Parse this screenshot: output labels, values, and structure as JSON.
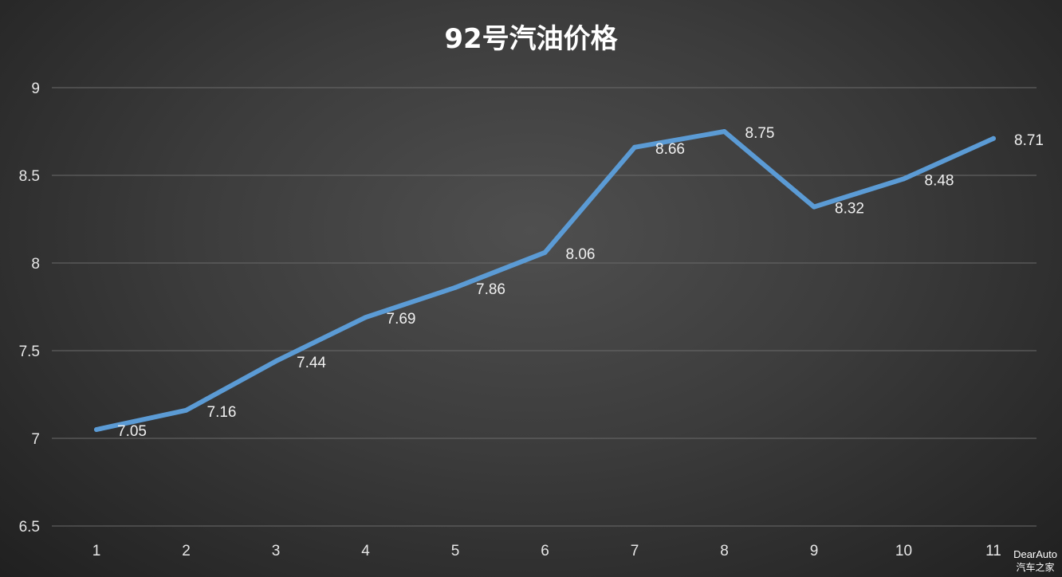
{
  "chart_data": {
    "type": "line",
    "title": "92号汽油价格",
    "xlabel": "",
    "ylabel": "",
    "categories": [
      "1",
      "2",
      "3",
      "4",
      "5",
      "6",
      "7",
      "8",
      "9",
      "10",
      "11"
    ],
    "values": [
      7.05,
      7.16,
      7.44,
      7.69,
      7.86,
      8.06,
      8.66,
      8.75,
      8.32,
      8.48,
      8.71
    ],
    "data_labels": [
      "7.05",
      "7.16",
      "7.44",
      "7.69",
      "7.86",
      "8.06",
      "8.66",
      "8.75",
      "8.32",
      "8.48",
      "8.71"
    ],
    "ylim": [
      6.5,
      9
    ],
    "yticks": [
      6.5,
      7,
      7.5,
      8,
      8.5,
      9
    ],
    "ytick_labels": [
      "6.5",
      "7",
      "7.5",
      "8",
      "8.5",
      "9"
    ],
    "grid": true,
    "legend": "none",
    "line_color": "#5b9bd5"
  },
  "watermark": {
    "text_en": "DearAuto",
    "text_cn": "汽车之家"
  }
}
